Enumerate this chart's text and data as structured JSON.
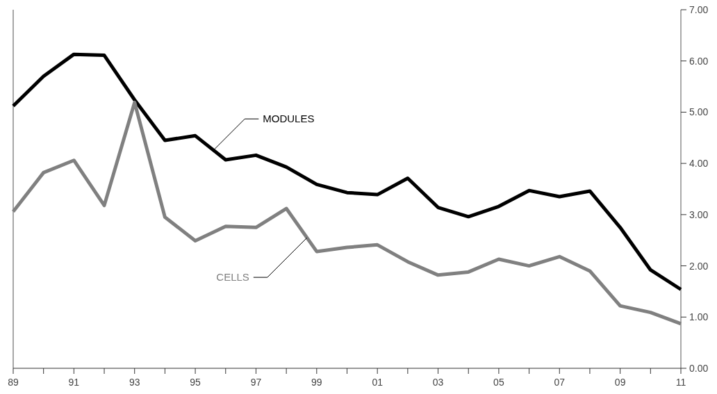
{
  "chart_data": {
    "type": "line",
    "x": [
      1989,
      1990,
      1991,
      1992,
      1993,
      1994,
      1995,
      1996,
      1997,
      1998,
      1999,
      2000,
      2001,
      2002,
      2003,
      2004,
      2005,
      2006,
      2007,
      2008,
      2009,
      2010,
      2011
    ],
    "series": [
      {
        "name": "MODULES",
        "color": "#000000",
        "values": [
          5.12,
          5.7,
          6.13,
          6.11,
          5.24,
          4.45,
          4.54,
          4.07,
          4.16,
          3.93,
          3.59,
          3.43,
          3.39,
          3.71,
          3.14,
          2.96,
          3.16,
          3.47,
          3.35,
          3.46,
          2.75,
          1.92,
          1.54
        ]
      },
      {
        "name": "CELLS",
        "color": "#808080",
        "values": [
          3.06,
          3.82,
          4.06,
          3.18,
          5.19,
          2.95,
          2.49,
          2.77,
          2.75,
          3.12,
          2.28,
          2.36,
          2.41,
          2.08,
          1.82,
          1.88,
          2.13,
          2.0,
          2.18,
          1.9,
          1.22,
          1.09,
          0.87
        ]
      }
    ],
    "xlim": [
      1989,
      2011
    ],
    "xticks": [
      {
        "value": 1989,
        "label": "89"
      },
      {
        "value": 1990,
        "label": null
      },
      {
        "value": 1991,
        "label": "91"
      },
      {
        "value": 1992,
        "label": null
      },
      {
        "value": 1993,
        "label": "93"
      },
      {
        "value": 1994,
        "label": null
      },
      {
        "value": 1995,
        "label": "95"
      },
      {
        "value": 1996,
        "label": null
      },
      {
        "value": 1997,
        "label": "97"
      },
      {
        "value": 1998,
        "label": null
      },
      {
        "value": 1999,
        "label": "99"
      },
      {
        "value": 2000,
        "label": null
      },
      {
        "value": 2001,
        "label": "01"
      },
      {
        "value": 2002,
        "label": null
      },
      {
        "value": 2003,
        "label": "03"
      },
      {
        "value": 2004,
        "label": null
      },
      {
        "value": 2005,
        "label": "05"
      },
      {
        "value": 2006,
        "label": null
      },
      {
        "value": 2007,
        "label": "07"
      },
      {
        "value": 2008,
        "label": null
      },
      {
        "value": 2009,
        "label": "09"
      },
      {
        "value": 2010,
        "label": null
      },
      {
        "value": 2011,
        "label": "11"
      }
    ],
    "ylim": [
      0,
      7
    ],
    "yticks": [
      {
        "value": 0,
        "label": "0.00"
      },
      {
        "value": 1,
        "label": "1.00"
      },
      {
        "value": 2,
        "label": "2.00"
      },
      {
        "value": 3,
        "label": "3.00"
      },
      {
        "value": 4,
        "label": "4.00"
      },
      {
        "value": 5,
        "label": "5.00"
      },
      {
        "value": 6,
        "label": "6.00"
      },
      {
        "value": 7,
        "label": "7.00"
      }
    ],
    "line_style": "solid",
    "marker": "none",
    "grid": false
  }
}
